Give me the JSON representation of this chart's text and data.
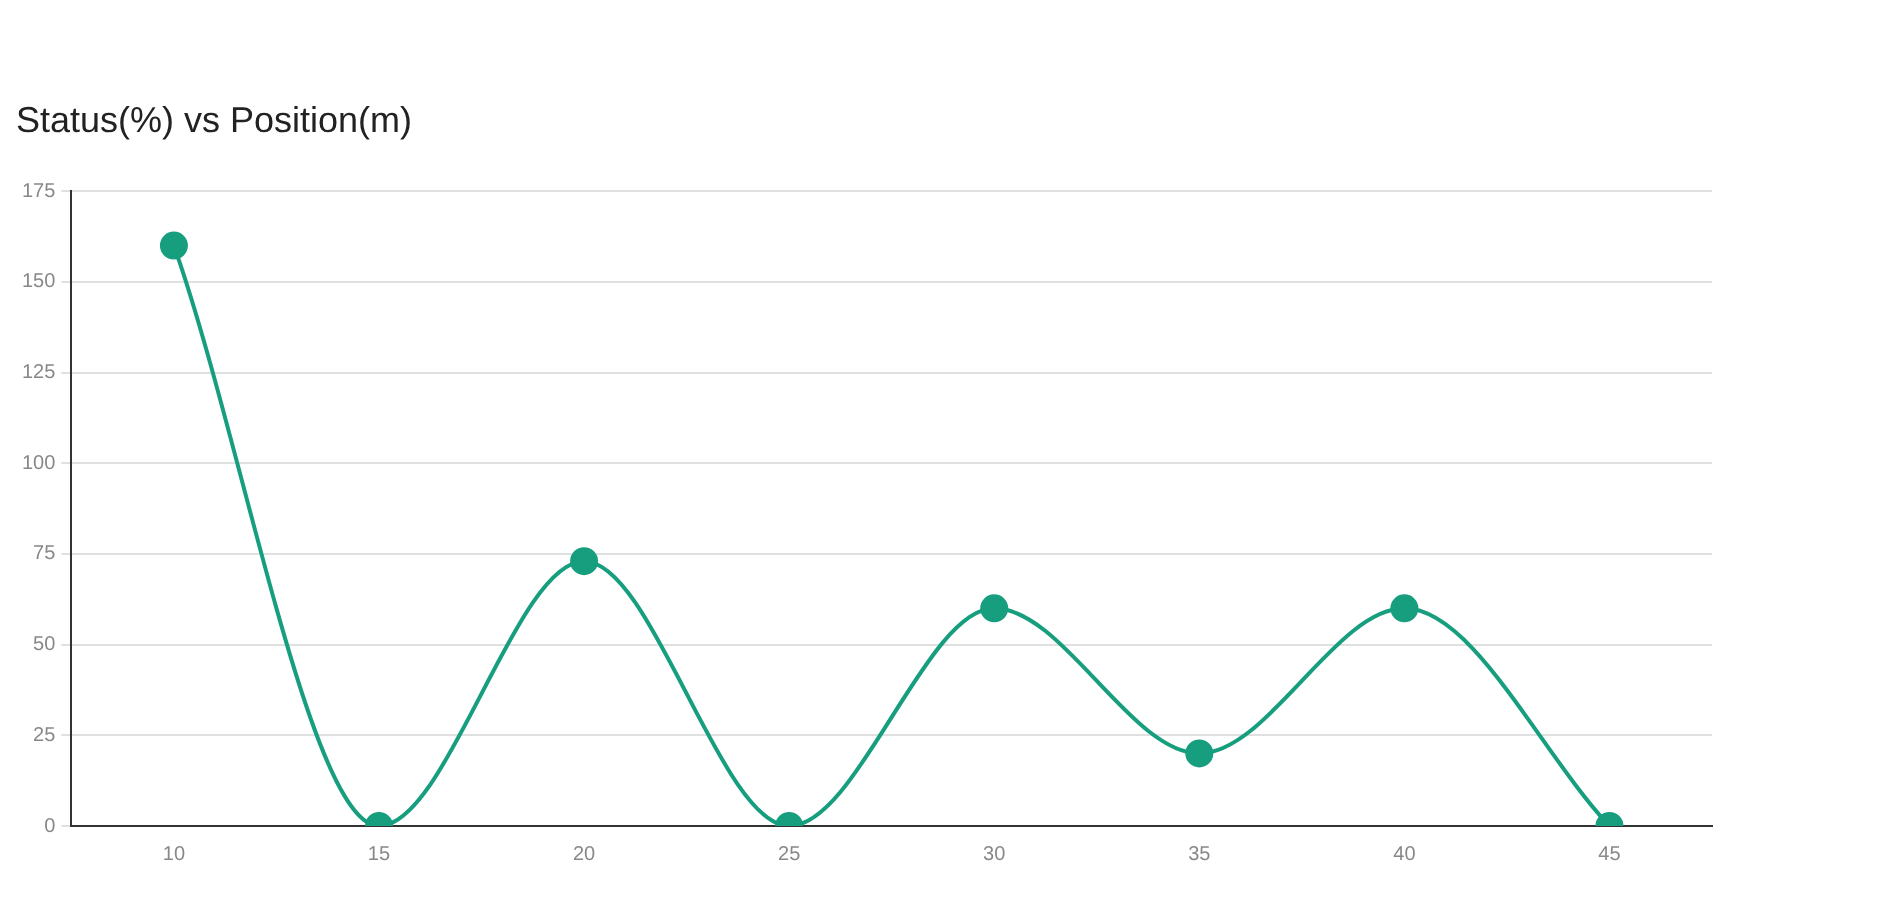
{
  "chart_data": {
    "type": "line",
    "title": "Status(%) vs Position(m)",
    "categories": [
      "10",
      "15",
      "20",
      "25",
      "30",
      "35",
      "40",
      "45"
    ],
    "series": [
      {
        "color": "#169e7e",
        "values": [
          160,
          0,
          73,
          0,
          60,
          20,
          60,
          0
        ]
      }
    ],
    "ylim": [
      0,
      175
    ],
    "yticks": [
      0,
      25,
      50,
      75,
      100,
      125,
      150,
      175
    ],
    "grid": "y",
    "legend": false,
    "marker": "circle",
    "line_style": "solid"
  }
}
